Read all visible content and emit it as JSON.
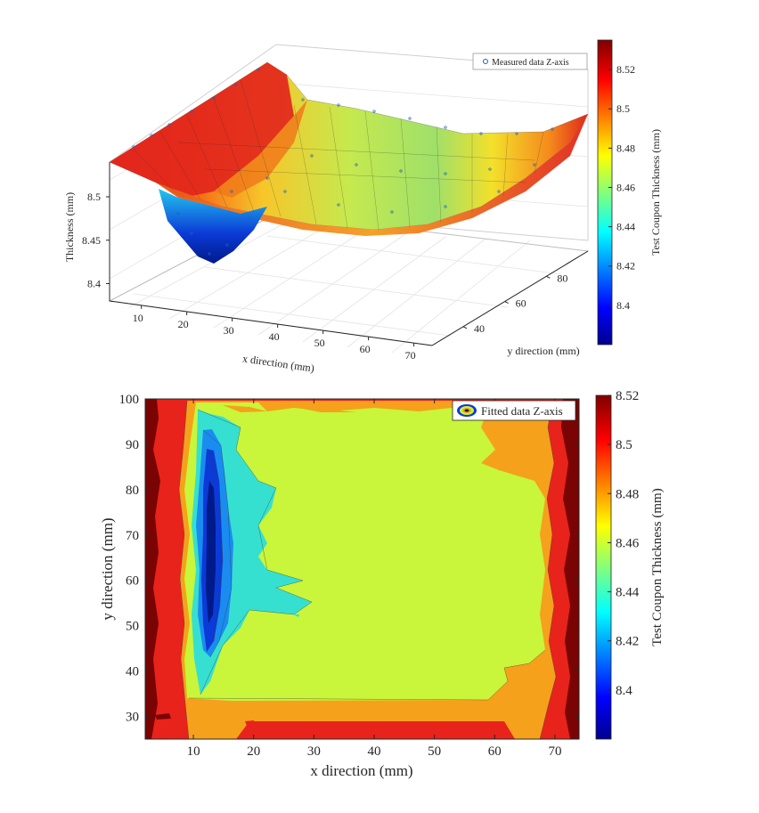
{
  "chart_data": [
    {
      "type": "surface3d",
      "xlabel": "x direction (mm)",
      "ylabel": "y direction (mm)",
      "zlabel": "Thickness (mm)",
      "x_ticks": [
        10,
        20,
        30,
        40,
        50,
        60,
        70
      ],
      "y_ticks": [
        40,
        60,
        80
      ],
      "z_ticks": [
        8.4,
        8.45,
        8.5
      ],
      "xlim": [
        3,
        74
      ],
      "ylim": [
        25,
        100
      ],
      "zlim": [
        8.38,
        8.54
      ],
      "legend": {
        "label": "Measured data Z-axis",
        "position": "top-right"
      },
      "colorbar": {
        "label": "Test Coupon Thickness (mm)",
        "ticks": [
          8.4,
          8.42,
          8.44,
          8.46,
          8.48,
          8.5,
          8.52
        ],
        "range": [
          8.38,
          8.535
        ],
        "colormap": "jet"
      },
      "surface_profile": {
        "x": [
          3,
          7,
          10,
          13,
          16,
          20,
          30,
          40,
          50,
          60,
          65,
          70,
          74
        ],
        "z": [
          8.52,
          8.49,
          8.42,
          8.41,
          8.42,
          8.44,
          8.46,
          8.465,
          8.465,
          8.47,
          8.49,
          8.52,
          8.53
        ]
      }
    },
    {
      "type": "contour",
      "xlabel": "x direction (mm)",
      "ylabel": "y direction (mm)",
      "x_ticks": [
        10,
        20,
        30,
        40,
        50,
        60,
        70
      ],
      "y_ticks": [
        30,
        40,
        50,
        60,
        70,
        80,
        90,
        100
      ],
      "xlim": [
        2,
        74
      ],
      "ylim": [
        25,
        100
      ],
      "legend": {
        "label": "Fitted data Z-axis",
        "position": "top-right"
      },
      "colorbar": {
        "label": "Test Coupon Thickness (mm)",
        "ticks": [
          8.4,
          8.42,
          8.44,
          8.46,
          8.48,
          8.5,
          8.52
        ],
        "range": [
          8.38,
          8.52
        ],
        "colormap": "jet"
      },
      "regions": [
        {
          "level": 8.52,
          "color": "#7a0403",
          "bounds": {
            "x": [
              2,
              4
            ],
            "y": [
              25,
              100
            ]
          }
        },
        {
          "level": 8.52,
          "color": "#7a0403",
          "bounds": {
            "x": [
              72,
              74
            ],
            "y": [
              25,
              100
            ]
          }
        },
        {
          "level": 8.5,
          "color": "#e8231b",
          "bounds": {
            "x": [
              2,
              74
            ],
            "y": [
              25,
              100
            ]
          }
        },
        {
          "level": 8.48,
          "color": "#f5a11c",
          "bounds": {
            "x": [
              8,
              70
            ],
            "y": [
              26,
              99
            ]
          }
        },
        {
          "level": 8.46,
          "color": "#c9f53a",
          "bounds": {
            "x": [
              10,
              63
            ],
            "y": [
              34,
              99
            ]
          }
        },
        {
          "level": 8.44,
          "color": "#36e0d0",
          "bounds": {
            "x": [
              10,
              21
            ],
            "y": [
              35,
              95
            ]
          }
        },
        {
          "level": 8.42,
          "color": "#1a8cf0",
          "bounds": {
            "x": [
              11,
              15
            ],
            "y": [
              42,
              88
            ]
          }
        },
        {
          "level": 8.4,
          "color": "#0b3ad6",
          "bounds": {
            "x": [
              12,
              14
            ],
            "y": [
              48,
              83
            ]
          }
        },
        {
          "level": 8.39,
          "color": "#001a8a",
          "bounds": {
            "x": [
              12.5,
              13.5
            ],
            "y": [
              52,
              78
            ]
          }
        }
      ]
    }
  ]
}
